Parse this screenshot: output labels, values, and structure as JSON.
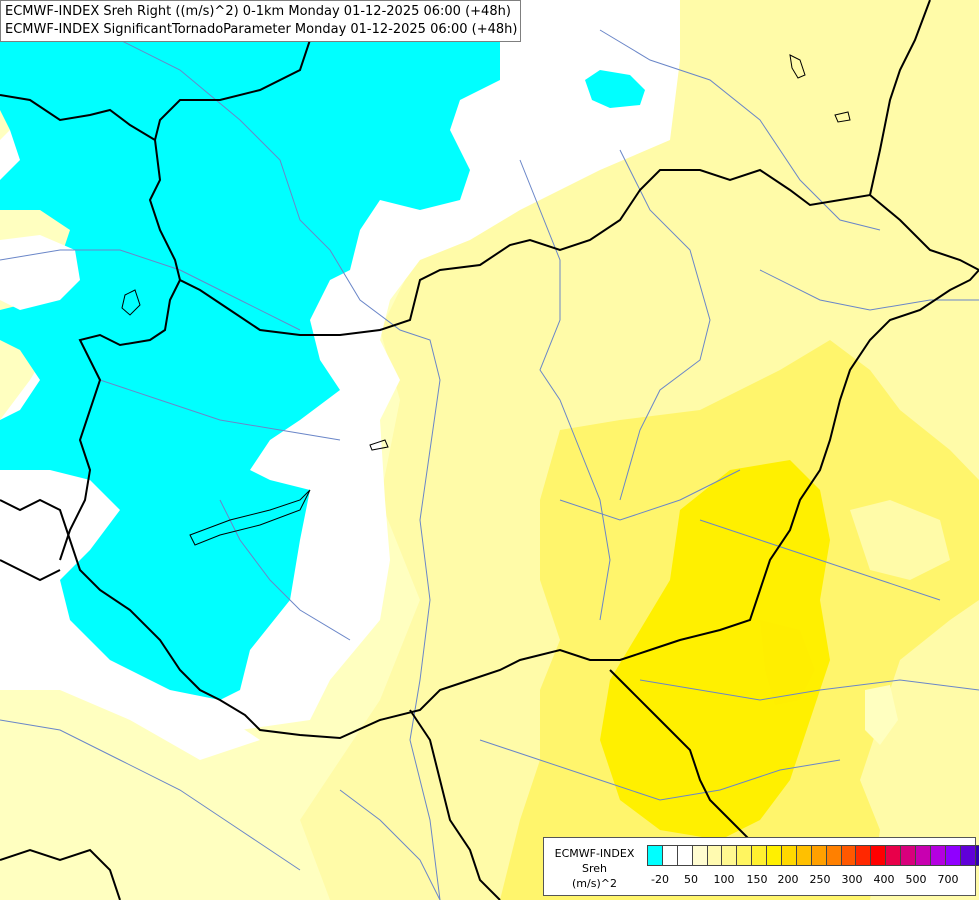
{
  "title": {
    "line1": "ECMWF-INDEX Sreh Right ((m/s)^2) 0-1km Monday 01-12-2025 06:00 (+48h)",
    "line2": "ECMWF-INDEX SignificantTornadoParameter Monday 01-12-2025 06:00 (+48h)"
  },
  "legend": {
    "source": "ECMWF-INDEX",
    "variable": "Sreh",
    "unit": "(m/s)^2",
    "colors": [
      "#00ffff",
      "#ffffff",
      "#ffffff",
      "#fffcd0",
      "#fffab0",
      "#fff890",
      "#fff560",
      "#fff030",
      "#fff000",
      "#ffd800",
      "#ffc000",
      "#ffa000",
      "#ff8000",
      "#ff5800",
      "#ff2800",
      "#ff0000",
      "#e8004a",
      "#d8007c",
      "#c800b0",
      "#b400e0",
      "#9000ff",
      "#6000d8",
      "#3000b0",
      "#000090"
    ],
    "ticks": [
      "-20",
      "50",
      "100",
      "150",
      "200",
      "250",
      "300",
      "400",
      "500",
      "700"
    ]
  },
  "colors": {
    "cyan": "#00ffff",
    "white": "#ffffff",
    "pale_yellow": "#ffffc0",
    "light_yellow": "#fffba8",
    "yellow": "#fff56c",
    "bright_yellow": "#fff000",
    "border_line": "#000000",
    "river_line": "#6a86c8"
  }
}
